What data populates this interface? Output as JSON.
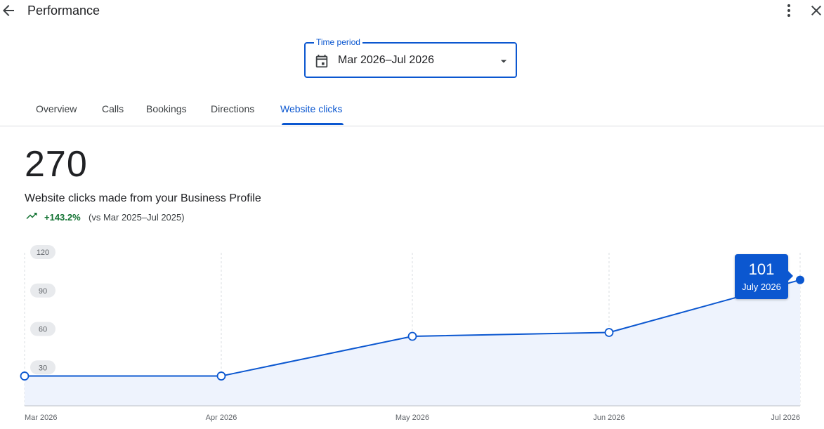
{
  "header": {
    "title": "Performance",
    "back_icon": "arrow-back-icon",
    "more_icon": "more-vert-icon",
    "close_icon": "close-icon"
  },
  "time_period": {
    "label": "Time period",
    "value": "Mar 2026–Jul 2026",
    "icon": "calendar-icon"
  },
  "tabs": [
    {
      "label": "Overview",
      "active": false
    },
    {
      "label": "Calls",
      "active": false
    },
    {
      "label": "Bookings",
      "active": false
    },
    {
      "label": "Directions",
      "active": false
    },
    {
      "label": "Website clicks",
      "active": true
    }
  ],
  "metric": {
    "value": "270",
    "description": "Website clicks made from your Business Profile",
    "trend_percent": "+143.2%",
    "trend_comparison": "(vs Mar 2025–Jul 2025)"
  },
  "colors": {
    "accent": "#0b57d0",
    "positive": "#137333",
    "area_fill": "#eef3fd"
  },
  "tooltip": {
    "value": "101",
    "label": "July 2026"
  },
  "chart_data": {
    "type": "area",
    "categories": [
      "Mar 2026",
      "Apr 2026",
      "May 2026",
      "Jun 2026",
      "Jul 2026"
    ],
    "series": [
      {
        "values": [
          26,
          26,
          57,
          60,
          101
        ]
      }
    ],
    "yticks": [
      "30",
      "60",
      "90",
      "120"
    ],
    "ylim": [
      0,
      120
    ],
    "grid": "vertical dashed",
    "highlight_index": 4
  }
}
